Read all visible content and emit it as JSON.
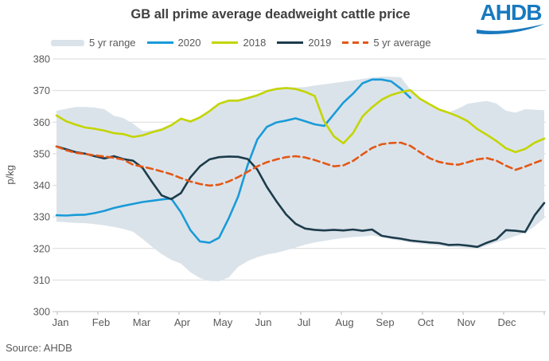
{
  "title": "GB all prime average deadweight cattle price",
  "logo_text": "AHDB",
  "source_text": "Source: AHDB",
  "chart_data": {
    "type": "line",
    "title": "GB all prime average deadweight cattle price",
    "xlabel": "",
    "ylabel": "p/kg",
    "ylim": [
      300,
      380
    ],
    "ytick_step": 10,
    "grid": "horizontal",
    "weeks": 52,
    "x_months": [
      "Jan",
      "Feb",
      "Mar",
      "Apr",
      "May",
      "Jun",
      "Jul",
      "Aug",
      "Sep",
      "Oct",
      "Nov",
      "Dec"
    ],
    "colors": {
      "grid": "#d9d9d9",
      "axis_text": "#595959",
      "axis_line": "#c6c6c6",
      "title_text": "#3f3f3f",
      "logo_blue": "#1879bf"
    },
    "band": {
      "name": "5 yr range",
      "color": "#dbe3ea",
      "upper": [
        363.6,
        364.2,
        364.8,
        364.8,
        364.6,
        364.1,
        362.0,
        361.3,
        359.5,
        357.2,
        357.4,
        358.1,
        359.4,
        361.4,
        360.6,
        361.9,
        363.8,
        366.2,
        367.2,
        367.2,
        368.0,
        368.9,
        370.2,
        370.9,
        371.2,
        371.0,
        371.1,
        371.6,
        372.0,
        372.4,
        372.8,
        373.2,
        373.7,
        374.1,
        374.4,
        374.4,
        374.2,
        370.3,
        367.5,
        365.8,
        364.1,
        363.1,
        364.3,
        365.8,
        366.3,
        366.7,
        365.9,
        363.6,
        363.0,
        364.1,
        363.9,
        363.8
      ],
      "lower": [
        328.5,
        328.3,
        328.1,
        328.0,
        327.7,
        327.3,
        326.8,
        326.2,
        325.3,
        323.0,
        320.5,
        318.2,
        316.4,
        315.2,
        312.5,
        310.6,
        309.7,
        309.6,
        310.8,
        314.2,
        316.0,
        317.2,
        318.1,
        318.6,
        319.4,
        320.3,
        321.2,
        321.9,
        322.4,
        322.9,
        323.3,
        323.6,
        323.8,
        324.1,
        323.6,
        322.9,
        322.4,
        321.9,
        321.5,
        321.2,
        320.9,
        320.5,
        320.4,
        320.2,
        319.9,
        320.9,
        321.9,
        322.9,
        323.9,
        324.9,
        327.0,
        329.6
      ]
    },
    "series": [
      {
        "name": "2020",
        "color": "#199bd8",
        "dashed": false,
        "start_week": 1,
        "values": [
          330.5,
          330.4,
          330.6,
          330.7,
          331.2,
          331.9,
          332.8,
          333.5,
          334.1,
          334.7,
          335.1,
          335.5,
          335.8,
          331.5,
          325.8,
          322.2,
          321.8,
          323.4,
          329.5,
          336.5,
          346.5,
          354.5,
          358.5,
          359.9,
          360.5,
          361.2,
          360.3,
          359.3,
          358.8,
          362.5,
          366.2,
          369.0,
          372.3,
          373.5,
          373.5,
          372.9,
          370.6,
          367.7
        ]
      },
      {
        "name": "2018",
        "color": "#c3d500",
        "dashed": false,
        "start_week": 1,
        "values": [
          362.1,
          360.3,
          359.2,
          358.3,
          357.9,
          357.3,
          356.5,
          356.2,
          355.3,
          355.8,
          356.8,
          357.6,
          359.0,
          361.1,
          360.2,
          361.5,
          363.5,
          365.8,
          366.8,
          366.8,
          367.6,
          368.5,
          369.8,
          370.5,
          370.8,
          370.5,
          369.6,
          368.3,
          360.2,
          355.5,
          353.3,
          356.5,
          361.8,
          364.7,
          367.1,
          368.6,
          369.5,
          370.1,
          367.4,
          365.7,
          364.0,
          363.0,
          361.8,
          360.3,
          357.8,
          356.0,
          354.0,
          351.7,
          350.5,
          351.5,
          353.5,
          354.8
        ]
      },
      {
        "name": "2019",
        "color": "#1d3c4c",
        "dashed": false,
        "start_week": 1,
        "values": [
          352.3,
          351.4,
          350.5,
          350.0,
          349.2,
          348.5,
          349.2,
          348.3,
          347.8,
          345.5,
          341.0,
          336.8,
          335.6,
          337.5,
          342.5,
          346.0,
          348.2,
          348.9,
          349.1,
          349.0,
          348.3,
          345.0,
          339.5,
          334.9,
          330.8,
          327.8,
          326.3,
          325.9,
          325.7,
          325.9,
          325.7,
          326.0,
          325.6,
          326.0,
          324.0,
          323.5,
          323.1,
          322.5,
          322.2,
          321.9,
          321.7,
          321.1,
          321.2,
          320.9,
          320.5,
          321.8,
          322.9,
          325.8,
          325.6,
          325.2,
          330.5,
          334.4
        ]
      },
      {
        "name": "5 yr average",
        "color": "#e25817",
        "dashed": true,
        "start_week": 1,
        "values": [
          352.3,
          351.1,
          350.3,
          349.9,
          349.5,
          349.1,
          348.7,
          348.1,
          346.5,
          345.9,
          345.2,
          344.4,
          343.5,
          342.3,
          341.2,
          340.4,
          339.9,
          340.2,
          341.2,
          342.6,
          344.3,
          346.0,
          347.3,
          348.2,
          348.9,
          349.2,
          348.8,
          348.0,
          347.0,
          346.0,
          346.3,
          347.7,
          349.8,
          351.8,
          353.0,
          353.4,
          353.5,
          352.5,
          350.5,
          348.6,
          347.4,
          346.8,
          346.5,
          347.3,
          348.2,
          348.6,
          347.8,
          346.2,
          344.9,
          345.9,
          347.1,
          348.2
        ]
      }
    ]
  }
}
